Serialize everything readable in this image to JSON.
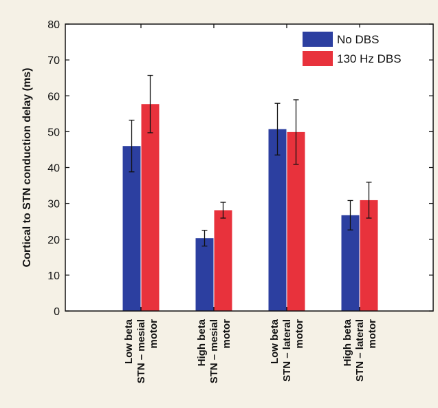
{
  "chart_data": {
    "type": "bar",
    "title": "",
    "xlabel": "",
    "ylabel": "Cortical to STN conduction delay (ms)",
    "ylim": [
      0,
      80
    ],
    "yticks": [
      0,
      10,
      20,
      30,
      40,
      50,
      60,
      70,
      80
    ],
    "categories": [
      [
        "Low beta",
        "STN – mesial",
        "motor"
      ],
      [
        "High beta",
        "STN – mesial",
        "motor"
      ],
      [
        "Low beta",
        "STN – lateral",
        "motor"
      ],
      [
        "High beta",
        "STN – lateral",
        "motor"
      ]
    ],
    "series": [
      {
        "name": "No DBS",
        "color": "#2c3fa0",
        "values": [
          46,
          20.3,
          50.7,
          26.7
        ],
        "errors": [
          7.2,
          2.2,
          7.2,
          4.1
        ]
      },
      {
        "name": "130 Hz DBS",
        "color": "#e8323c",
        "values": [
          57.7,
          28.1,
          49.9,
          30.9
        ],
        "errors": [
          8.0,
          2.2,
          9.0,
          5.0
        ]
      }
    ],
    "legend": "top-right",
    "grid": false
  },
  "colors": {
    "background": "#f5f1e6",
    "plot_background": "#ffffff",
    "axis": "#111111"
  }
}
